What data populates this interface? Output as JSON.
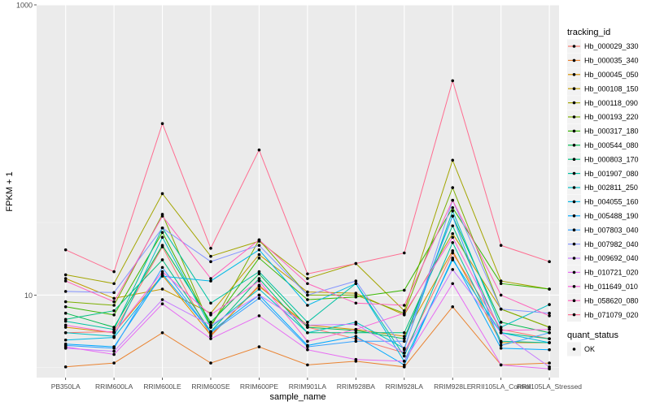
{
  "chart_data": {
    "type": "line",
    "xlabel": "sample_name",
    "ylabel": "FPKM + 1",
    "yscale": "log10",
    "ylim": [
      2.7,
      1000
    ],
    "yticks": [
      10,
      1000
    ],
    "ytick_labels": [
      "10",
      "1000"
    ],
    "grid": true,
    "legend_position": "right",
    "categories": [
      "PB350LA",
      "RRIM600LA",
      "RRIM600LE",
      "RRIM600SE",
      "RRIM600PE",
      "RRIM901LA",
      "RRIM928BA",
      "RRIM928LA",
      "RRIM928LE",
      "RRII105LA_Control",
      "RRII105LA_Stressed"
    ],
    "legend_title": "tracking_id",
    "series": [
      {
        "name": "Hb_000029_330",
        "color": "#F8766D",
        "values": [
          5.5,
          5.6,
          21.5,
          5.2,
          11.7,
          6.0,
          5.0,
          4.0,
          19.5,
          5.8,
          5.0
        ]
      },
      {
        "name": "Hb_000035_340",
        "color": "#EA8331",
        "values": [
          3.2,
          3.4,
          5.5,
          3.4,
          4.4,
          3.3,
          3.5,
          3.2,
          8.3,
          3.3,
          3.4
        ]
      },
      {
        "name": "Hb_000045_050",
        "color": "#D89000",
        "values": [
          6.0,
          5.5,
          13.7,
          5.3,
          11.5,
          6.2,
          5.8,
          5.2,
          20.2,
          4.7,
          4.7
        ]
      },
      {
        "name": "Hb_000108_150",
        "color": "#C09B00",
        "values": [
          13.0,
          9.5,
          11.0,
          7.5,
          19.0,
          10.5,
          10.3,
          7.3,
          26.5,
          8.0,
          6.0
        ]
      },
      {
        "name": "Hb_000118_090",
        "color": "#A3A500",
        "values": [
          13.8,
          12.0,
          50.0,
          18.5,
          23.5,
          13.0,
          16.5,
          7.8,
          85.0,
          12.5,
          11.0
        ]
      },
      {
        "name": "Hb_000193_220",
        "color": "#7CAE00",
        "values": [
          9.0,
          8.5,
          36.0,
          6.0,
          24.0,
          10.0,
          10.0,
          7.5,
          55.0,
          8.0,
          6.0
        ]
      },
      {
        "name": "Hb_000317_180",
        "color": "#39B600",
        "values": [
          8.3,
          7.3,
          27.0,
          6.2,
          18.0,
          9.3,
          9.7,
          10.8,
          40.0,
          12.0,
          11.0
        ]
      },
      {
        "name": "Hb_000544_080",
        "color": "#00BB4E",
        "values": [
          7.5,
          6.0,
          22.0,
          6.5,
          14.0,
          6.0,
          5.7,
          5.0,
          35.0,
          6.5,
          5.5
        ]
      },
      {
        "name": "Hb_000803_170",
        "color": "#00BF7D",
        "values": [
          6.8,
          7.8,
          17.5,
          5.6,
          13.0,
          5.5,
          5.5,
          5.5,
          30.0,
          5.5,
          5.0
        ]
      },
      {
        "name": "Hb_001907_080",
        "color": "#00C1A3",
        "values": [
          6.6,
          5.8,
          29.0,
          8.8,
          14.5,
          6.5,
          12.0,
          3.8,
          23.0,
          4.8,
          4.7
        ]
      },
      {
        "name": "Hb_002811_250",
        "color": "#00BFC4",
        "values": [
          5.5,
          5.2,
          25.0,
          6.0,
          11.0,
          5.5,
          6.5,
          4.3,
          38.0,
          6.0,
          8.6
        ]
      },
      {
        "name": "Hb_004055_160",
        "color": "#00B8E7",
        "values": [
          4.9,
          5.1,
          13.5,
          12.5,
          20.5,
          8.5,
          12.0,
          3.5,
          17.5,
          5.5,
          4.7
        ]
      },
      {
        "name": "Hb_005488_190",
        "color": "#00A9FF",
        "values": [
          4.6,
          4.4,
          14.0,
          5.6,
          10.0,
          4.5,
          5.2,
          3.3,
          18.0,
          4.3,
          4.2
        ]
      },
      {
        "name": "Hb_007803_040",
        "color": "#35A2FF",
        "values": [
          4.5,
          4.3,
          15.5,
          5.5,
          9.5,
          4.4,
          4.8,
          4.8,
          35.0,
          4.5,
          5.5
        ]
      },
      {
        "name": "Hb_007982_040",
        "color": "#8494FF",
        "values": [
          10.6,
          10.4,
          29.0,
          17.0,
          22.0,
          10.0,
          12.5,
          4.2,
          45.0,
          8.0,
          7.5
        ]
      },
      {
        "name": "Hb_009692_040",
        "color": "#C77CFF",
        "values": [
          4.3,
          4.1,
          9.3,
          6.2,
          10.0,
          6.2,
          6.3,
          4.0,
          15.0,
          5.5,
          3.2
        ]
      },
      {
        "name": "Hb_010721_020",
        "color": "#E76BF3",
        "values": [
          4.4,
          3.9,
          8.7,
          5.0,
          7.2,
          4.2,
          3.6,
          3.5,
          12.0,
          3.3,
          3.1
        ]
      },
      {
        "name": "Hb_011649_010",
        "color": "#FA62DB",
        "values": [
          6.2,
          5.5,
          14.5,
          7.3,
          12.5,
          4.8,
          5.8,
          7.5,
          25.0,
          5.7,
          5.8
        ]
      },
      {
        "name": "Hb_058620_080",
        "color": "#FF62BC",
        "values": [
          12.5,
          9.0,
          35.0,
          13.0,
          24.0,
          12.0,
          8.8,
          8.5,
          45.0,
          10.0,
          7.2
        ]
      },
      {
        "name": "Hb_071079_020",
        "color": "#FF6C90",
        "values": [
          20.5,
          14.5,
          152.0,
          21.0,
          100.0,
          14.0,
          16.5,
          19.5,
          300.0,
          22.0,
          17.0
        ]
      }
    ],
    "shape_legend": {
      "title": "quant_status",
      "items": [
        "OK"
      ]
    }
  }
}
